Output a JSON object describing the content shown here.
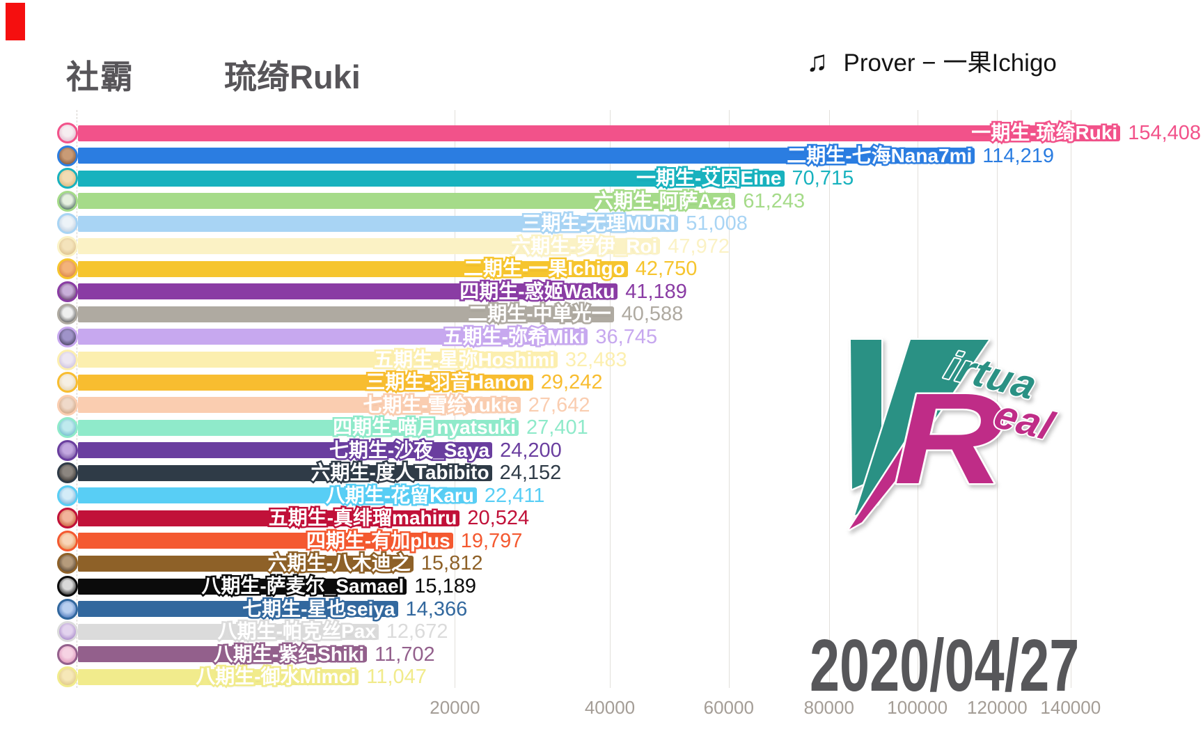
{
  "corner_marker_color": "#f50f0f",
  "header": {
    "rank_label": "社霸",
    "leader_name": "琉绮Ruki",
    "music_icon": "music-note",
    "music_credit": "Prover − 一果Ichigo"
  },
  "date": "2020/04/27",
  "logo": {
    "v_big": "V",
    "virtua_rest": "irtua",
    "r_big": "R",
    "real_rest": "eal",
    "teal": "#2a9184",
    "magenta": "#bf2c87"
  },
  "chart_data": {
    "type": "bar",
    "orientation": "horizontal",
    "scale": "sqrt",
    "xlim": [
      0,
      160000
    ],
    "grid": true,
    "x_ticks": [
      20000,
      40000,
      60000,
      80000,
      100000,
      120000,
      140000
    ],
    "x_tick_labels": [
      "20000",
      "40000",
      "60000",
      "80000",
      "100000",
      "120000",
      "140000"
    ],
    "bars": [
      {
        "name": "一期生-琉绮Ruki",
        "value": 154408,
        "display": "154,408",
        "color": "#f2528a",
        "avatar": [
          "#f6edf0",
          "#e0b4ca"
        ]
      },
      {
        "name": "二期生-七海Nana7mi",
        "value": 114219,
        "display": "114,219",
        "color": "#2b7de1",
        "avatar": [
          "#c99b76",
          "#7a4e33"
        ]
      },
      {
        "name": "一期生-艾因Eine",
        "value": 70715,
        "display": "70,715",
        "color": "#18b2be",
        "avatar": [
          "#f2dcb4",
          "#d9b478"
        ]
      },
      {
        "name": "六期生-阿萨Aza",
        "value": 61243,
        "display": "61,243",
        "color": "#a5db89",
        "avatar": [
          "#e6f0e0",
          "#33554a"
        ]
      },
      {
        "name": "三期生-无理MURI",
        "value": 51008,
        "display": "51,008",
        "color": "#a8d4f4",
        "avatar": [
          "#edf3f8",
          "#b8cbde"
        ]
      },
      {
        "name": "六期生-罗伊_Roi",
        "value": 47972,
        "display": "47,972",
        "color": "#fbf2c5",
        "avatar": [
          "#f4e3bb",
          "#d9bc86"
        ]
      },
      {
        "name": "二期生-一果Ichigo",
        "value": 42750,
        "display": "42,750",
        "color": "#f6c52e",
        "avatar": [
          "#f3b37a",
          "#d97e3f"
        ]
      },
      {
        "name": "四期生-惑姬Waku",
        "value": 41189,
        "display": "41,189",
        "color": "#8a3ca4",
        "avatar": [
          "#c9afd9",
          "#59325f"
        ]
      },
      {
        "name": "二期生-中单光一",
        "value": 40588,
        "display": "40,588",
        "color": "#afaaa1",
        "avatar": [
          "#efefef",
          "#474747"
        ]
      },
      {
        "name": "五期生-弥希Miki",
        "value": 36745,
        "display": "36,745",
        "color": "#c7a8ef",
        "avatar": [
          "#9f93c9",
          "#3c3550"
        ]
      },
      {
        "name": "五期生-星弥Hoshimi",
        "value": 32483,
        "display": "32,483",
        "color": "#fcefaf",
        "avatar": [
          "#ede7f2",
          "#c7bbdd"
        ]
      },
      {
        "name": "三期生-羽音Hanon",
        "value": 29242,
        "display": "29,242",
        "color": "#f8bd30",
        "avatar": [
          "#f6efe3",
          "#e3cfa8"
        ]
      },
      {
        "name": "七期生-雪绘Yukie",
        "value": 27642,
        "display": "27,642",
        "color": "#facdb0",
        "avatar": [
          "#efd9c9",
          "#c99b76"
        ]
      },
      {
        "name": "四期生-喵月nyatsuki",
        "value": 27401,
        "display": "27,401",
        "color": "#8feaca",
        "avatar": [
          "#bfeaee",
          "#64b5c9"
        ]
      },
      {
        "name": "七期生-沙夜_Saya",
        "value": 24200,
        "display": "24,200",
        "color": "#6a3e9f",
        "avatar": [
          "#c3a8e0",
          "#6f4e9c"
        ]
      },
      {
        "name": "六期生-度人Tabibito",
        "value": 24152,
        "display": "24,152",
        "color": "#2f3b47",
        "avatar": [
          "#8c8680",
          "#332f2c"
        ]
      },
      {
        "name": "八期生-花留Karu",
        "value": 22411,
        "display": "22,411",
        "color": "#58cef5",
        "avatar": [
          "#d3ecf8",
          "#6faed9"
        ]
      },
      {
        "name": "五期生-真绯瑠mahiru",
        "value": 20524,
        "display": "20,524",
        "color": "#c11139",
        "avatar": [
          "#f2b49b",
          "#c4542f"
        ]
      },
      {
        "name": "四期生-有加plus",
        "value": 19797,
        "display": "19,797",
        "color": "#f45930",
        "avatar": [
          "#f8d5b8",
          "#e08b4c"
        ]
      },
      {
        "name": "六期生-八木迪之",
        "value": 15812,
        "display": "15,812",
        "color": "#8e6128",
        "avatar": [
          "#b59b7c",
          "#4a3826"
        ]
      },
      {
        "name": "八期生-萨麦尔_Samael",
        "value": 15189,
        "display": "15,189",
        "color": "#0b0b0b",
        "avatar": [
          "#d9d9d9",
          "#111111"
        ]
      },
      {
        "name": "七期生-星也seiya",
        "value": 14366,
        "display": "14,366",
        "color": "#32689e",
        "avatar": [
          "#b8cff0",
          "#3f6eb5"
        ]
      },
      {
        "name": "八期生-帕克丝Pax",
        "value": 12672,
        "display": "12,672",
        "color": "#dbdbdb",
        "avatar": [
          "#e3d3ee",
          "#9f7ec4"
        ]
      },
      {
        "name": "八期生-紫纪Shiki",
        "value": 11702,
        "display": "11,702",
        "color": "#93608c",
        "avatar": [
          "#f6d3e3",
          "#d98bb4"
        ]
      },
      {
        "name": "八期生-御水Mimoi",
        "value": 11047,
        "display": "11,047",
        "color": "#f1eb8c",
        "avatar": [
          "#f6e8b8",
          "#dcc280"
        ]
      }
    ]
  }
}
